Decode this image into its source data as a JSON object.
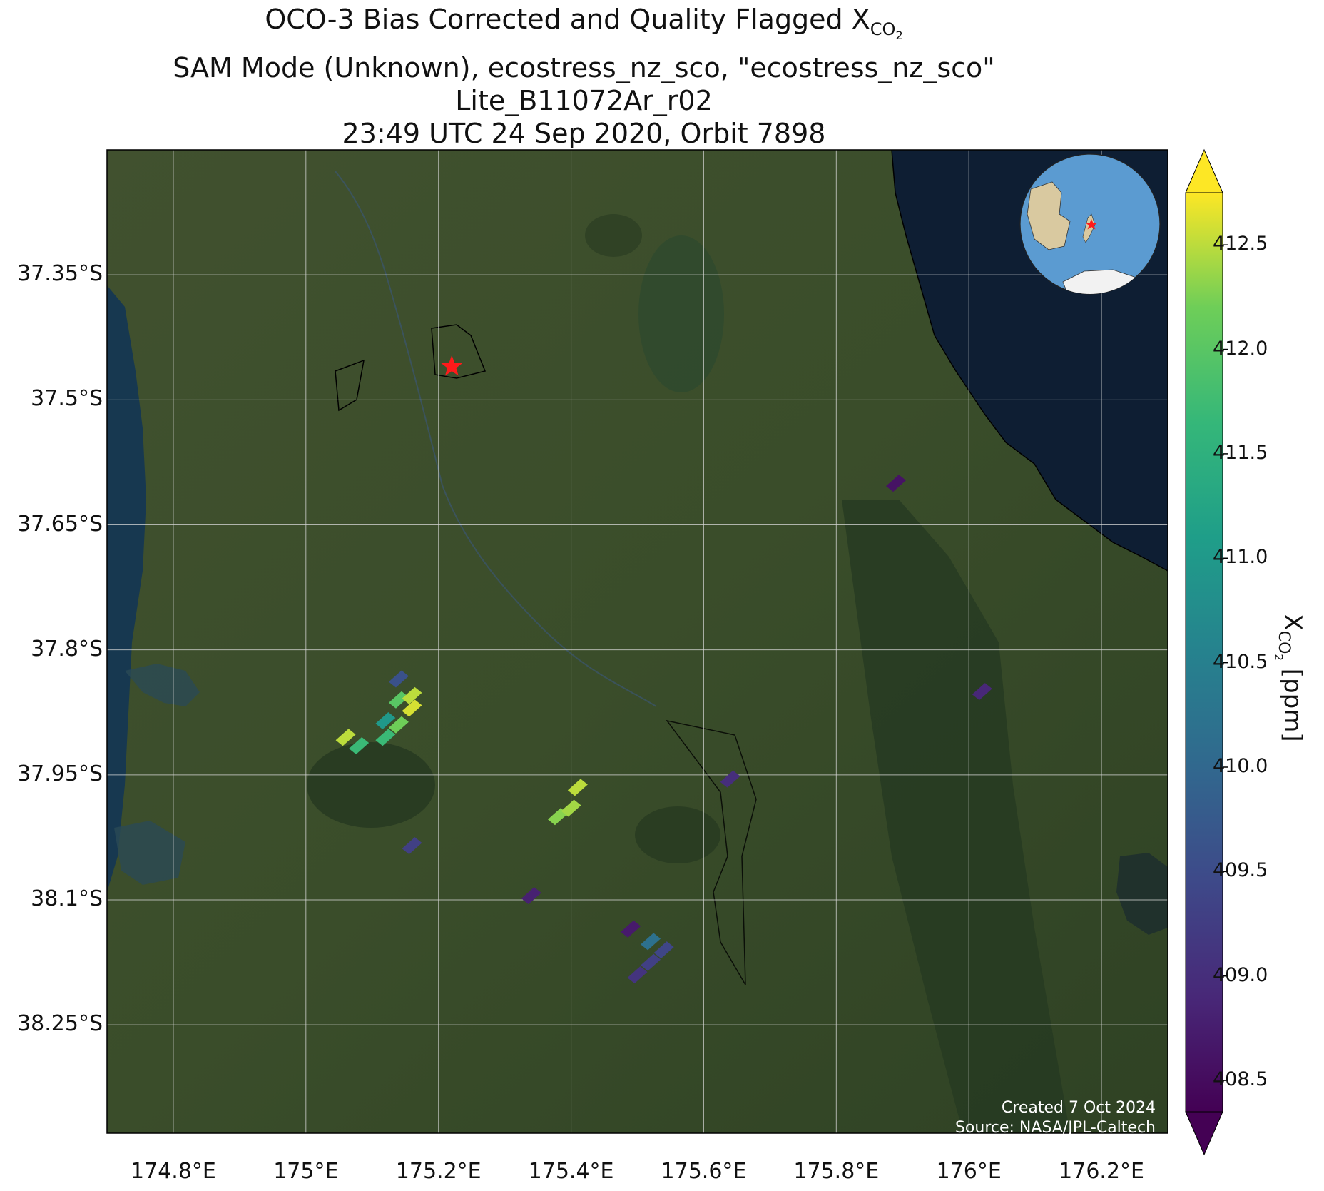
{
  "title": {
    "line1_prefix": "OCO-3 Bias Corrected and Quality Flagged X",
    "line1_sub": "CO",
    "line1_sub2": "2",
    "line2": "SAM Mode (Unknown), ecostress_nz_sco, \"ecostress_nz_sco\"",
    "line3": "Lite_B11072Ar_r02",
    "line4": "23:49 UTC 24 Sep 2020, Orbit 7898"
  },
  "map": {
    "lon_range": [
      174.7,
      176.3
    ],
    "lat_range": [
      -38.38,
      -37.2
    ],
    "lat_ticks": [
      {
        "value": -37.35,
        "label": "37.35°S"
      },
      {
        "value": -37.5,
        "label": "37.5°S"
      },
      {
        "value": -37.65,
        "label": "37.65°S"
      },
      {
        "value": -37.8,
        "label": "37.8°S"
      },
      {
        "value": -37.95,
        "label": "37.95°S"
      },
      {
        "value": -38.1,
        "label": "38.1°S"
      },
      {
        "value": -38.25,
        "label": "38.25°S"
      }
    ],
    "lon_ticks": [
      {
        "value": 174.8,
        "label": "174.8°E"
      },
      {
        "value": 175.0,
        "label": "175°E"
      },
      {
        "value": 175.2,
        "label": "175.2°E"
      },
      {
        "value": 175.4,
        "label": "175.4°E"
      },
      {
        "value": 175.6,
        "label": "175.6°E"
      },
      {
        "value": 175.8,
        "label": "175.8°E"
      },
      {
        "value": 176.0,
        "label": "176°E"
      },
      {
        "value": 176.2,
        "label": "176.2°E"
      }
    ],
    "target": {
      "lon": 175.22,
      "lat": -37.46
    },
    "colors": {
      "land": "#3d4f2c",
      "ocean": "#0e1e33",
      "grid": "#d8d8d8",
      "target": "#ff1a1a"
    },
    "soundings": [
      {
        "lon": 175.06,
        "lat": -37.905,
        "value": 412.5
      },
      {
        "lon": 175.08,
        "lat": -37.915,
        "value": 411.7
      },
      {
        "lon": 175.12,
        "lat": -37.905,
        "value": 411.7
      },
      {
        "lon": 175.12,
        "lat": -37.885,
        "value": 411.0
      },
      {
        "lon": 175.14,
        "lat": -37.89,
        "value": 412.2
      },
      {
        "lon": 175.14,
        "lat": -37.86,
        "value": 412.0
      },
      {
        "lon": 175.14,
        "lat": -37.835,
        "value": 409.6
      },
      {
        "lon": 175.16,
        "lat": -37.87,
        "value": 412.6
      },
      {
        "lon": 175.16,
        "lat": -37.855,
        "value": 412.5
      },
      {
        "lon": 175.16,
        "lat": -38.035,
        "value": 409.3
      },
      {
        "lon": 175.38,
        "lat": -38.0,
        "value": 412.3
      },
      {
        "lon": 175.4,
        "lat": -37.99,
        "value": 412.4
      },
      {
        "lon": 175.41,
        "lat": -37.965,
        "value": 412.5
      },
      {
        "lon": 175.34,
        "lat": -38.095,
        "value": 408.8
      },
      {
        "lon": 175.49,
        "lat": -38.135,
        "value": 408.7
      },
      {
        "lon": 175.52,
        "lat": -38.15,
        "value": 410.2
      },
      {
        "lon": 175.54,
        "lat": -38.16,
        "value": 409.4
      },
      {
        "lon": 175.52,
        "lat": -38.175,
        "value": 409.3
      },
      {
        "lon": 175.5,
        "lat": -38.19,
        "value": 409.1
      },
      {
        "lon": 175.64,
        "lat": -37.955,
        "value": 409.0
      },
      {
        "lon": 175.89,
        "lat": -37.6,
        "value": 408.6
      },
      {
        "lon": 176.02,
        "lat": -37.85,
        "value": 408.9
      }
    ]
  },
  "colorbar": {
    "min": 408.35,
    "max": 412.75,
    "ticks": [
      "408.5",
      "409.0",
      "409.5",
      "410.0",
      "410.5",
      "411.0",
      "411.5",
      "412.0",
      "412.5"
    ],
    "title_prefix": "X",
    "title_sub": "CO",
    "title_sub2": "2",
    "title_suffix": " [ppm]",
    "colormap": "viridis"
  },
  "credits": {
    "created": "Created 7 Oct 2024",
    "source": "Source: NASA/JPL-Caltech"
  },
  "inset": {
    "icon": "globe-locator-icon",
    "ocean": "#5b9bd1",
    "land": "#d9c9a0",
    "ice": "#f2f2f2"
  }
}
